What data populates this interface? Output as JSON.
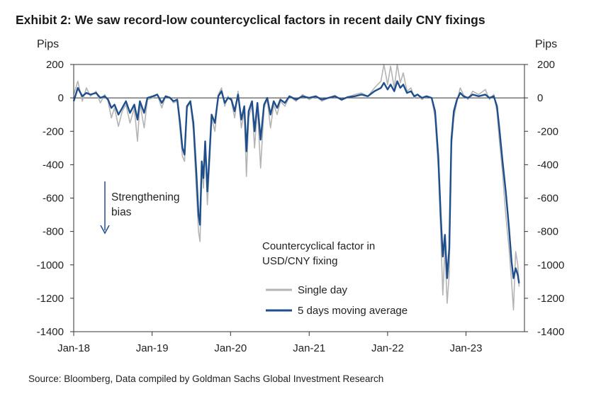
{
  "title": "Exhibit 2: We saw record-low countercyclical factors in recent daily CNY fixings",
  "source": "Source: Bloomberg, Data compiled by Goldman Sachs Global Investment Research",
  "chart_data": {
    "type": "line",
    "y_unit_left": "Pips",
    "y_unit_right": "Pips",
    "ylim": [
      -1400,
      200
    ],
    "yticks": [
      200,
      0,
      -200,
      -400,
      -600,
      -800,
      -1000,
      -1200,
      -1400
    ],
    "xlim": [
      "2018-01-01",
      "2023-09-30"
    ],
    "xticks": [
      {
        "label": "Jan-18",
        "date": "2018-01-01"
      },
      {
        "label": "Jan-19",
        "date": "2019-01-01"
      },
      {
        "label": "Jan-20",
        "date": "2020-01-01"
      },
      {
        "label": "Jan-21",
        "date": "2021-01-01"
      },
      {
        "label": "Jan-22",
        "date": "2022-01-01"
      },
      {
        "label": "Jan-23",
        "date": "2023-01-01"
      }
    ],
    "grid": false,
    "annotations": {
      "bias_line1": "Strengthening",
      "bias_line2": "bias",
      "legend_title_line1": "Countercyclical factor in",
      "legend_title_line2": "USD/CNY fixing"
    },
    "legend_position": "center-right",
    "series": [
      {
        "name": "Single day",
        "color": "#b4b4b4",
        "points": [
          [
            "2018-01-01",
            20
          ],
          [
            "2018-01-20",
            100
          ],
          [
            "2018-02-10",
            -20
          ],
          [
            "2018-03-01",
            60
          ],
          [
            "2018-03-20",
            10
          ],
          [
            "2018-04-15",
            40
          ],
          [
            "2018-05-05",
            -30
          ],
          [
            "2018-05-25",
            20
          ],
          [
            "2018-06-10",
            -20
          ],
          [
            "2018-06-25",
            -120
          ],
          [
            "2018-07-10",
            -60
          ],
          [
            "2018-07-28",
            -170
          ],
          [
            "2018-08-15",
            -80
          ],
          [
            "2018-09-01",
            -40
          ],
          [
            "2018-09-20",
            -150
          ],
          [
            "2018-10-10",
            -60
          ],
          [
            "2018-10-25",
            -260
          ],
          [
            "2018-11-05",
            -30
          ],
          [
            "2018-11-25",
            -180
          ],
          [
            "2018-12-10",
            -10
          ],
          [
            "2019-01-05",
            0
          ],
          [
            "2019-01-25",
            20
          ],
          [
            "2019-02-15",
            -60
          ],
          [
            "2019-03-05",
            10
          ],
          [
            "2019-03-25",
            5
          ],
          [
            "2019-04-10",
            -30
          ],
          [
            "2019-04-28",
            -20
          ],
          [
            "2019-05-10",
            -180
          ],
          [
            "2019-05-22",
            -350
          ],
          [
            "2019-06-01",
            -380
          ],
          [
            "2019-06-12",
            -60
          ],
          [
            "2019-06-28",
            -30
          ],
          [
            "2019-07-12",
            -200
          ],
          [
            "2019-07-26",
            -560
          ],
          [
            "2019-08-05",
            -800
          ],
          [
            "2019-08-12",
            -860
          ],
          [
            "2019-08-20",
            -430
          ],
          [
            "2019-08-28",
            -540
          ],
          [
            "2019-09-05",
            -300
          ],
          [
            "2019-09-15",
            -640
          ],
          [
            "2019-09-25",
            -400
          ],
          [
            "2019-10-05",
            -120
          ],
          [
            "2019-10-20",
            -200
          ],
          [
            "2019-11-05",
            20
          ],
          [
            "2019-11-20",
            60
          ],
          [
            "2019-12-05",
            -50
          ],
          [
            "2019-12-20",
            10
          ],
          [
            "2020-01-05",
            -20
          ],
          [
            "2020-01-20",
            -120
          ],
          [
            "2020-02-05",
            40
          ],
          [
            "2020-02-20",
            -180
          ],
          [
            "2020-03-05",
            -80
          ],
          [
            "2020-03-15",
            -470
          ],
          [
            "2020-03-25",
            -120
          ],
          [
            "2020-04-10",
            -40
          ],
          [
            "2020-04-22",
            -300
          ],
          [
            "2020-05-05",
            -50
          ],
          [
            "2020-05-20",
            -420
          ],
          [
            "2020-06-05",
            -60
          ],
          [
            "2020-06-20",
            -10
          ],
          [
            "2020-07-05",
            -180
          ],
          [
            "2020-07-20",
            -40
          ],
          [
            "2020-08-05",
            -100
          ],
          [
            "2020-08-20",
            -20
          ],
          [
            "2020-09-10",
            -50
          ],
          [
            "2020-10-01",
            10
          ],
          [
            "2020-11-01",
            -20
          ],
          [
            "2020-12-01",
            20
          ],
          [
            "2021-01-01",
            -10
          ],
          [
            "2021-02-01",
            10
          ],
          [
            "2021-03-01",
            -20
          ],
          [
            "2021-04-01",
            0
          ],
          [
            "2021-05-01",
            15
          ],
          [
            "2021-06-01",
            -15
          ],
          [
            "2021-07-01",
            5
          ],
          [
            "2021-08-01",
            20
          ],
          [
            "2021-09-01",
            30
          ],
          [
            "2021-10-01",
            10
          ],
          [
            "2021-11-01",
            60
          ],
          [
            "2021-12-01",
            100
          ],
          [
            "2021-12-15",
            200
          ],
          [
            "2022-01-01",
            80
          ],
          [
            "2022-01-15",
            190
          ],
          [
            "2022-02-01",
            60
          ],
          [
            "2022-02-15",
            200
          ],
          [
            "2022-03-01",
            90
          ],
          [
            "2022-03-15",
            150
          ],
          [
            "2022-04-01",
            40
          ],
          [
            "2022-04-20",
            60
          ],
          [
            "2022-05-05",
            0
          ],
          [
            "2022-05-20",
            20
          ],
          [
            "2022-06-10",
            -10
          ],
          [
            "2022-07-01",
            10
          ],
          [
            "2022-07-25",
            0
          ],
          [
            "2022-08-10",
            -120
          ],
          [
            "2022-08-25",
            -420
          ],
          [
            "2022-09-05",
            -800
          ],
          [
            "2022-09-15",
            -1180
          ],
          [
            "2022-09-25",
            -900
          ],
          [
            "2022-10-05",
            -1230
          ],
          [
            "2022-10-15",
            -1050
          ],
          [
            "2022-10-25",
            -300
          ],
          [
            "2022-11-05",
            -120
          ],
          [
            "2022-11-20",
            -20
          ],
          [
            "2022-12-05",
            60
          ],
          [
            "2022-12-20",
            20
          ],
          [
            "2023-01-10",
            -10
          ],
          [
            "2023-02-01",
            40
          ],
          [
            "2023-03-01",
            20
          ],
          [
            "2023-04-01",
            50
          ],
          [
            "2023-04-20",
            -10
          ],
          [
            "2023-05-10",
            20
          ],
          [
            "2023-05-25",
            -80
          ],
          [
            "2023-06-05",
            -250
          ],
          [
            "2023-06-20",
            -450
          ],
          [
            "2023-07-05",
            -700
          ],
          [
            "2023-07-20",
            -900
          ],
          [
            "2023-08-01",
            -1100
          ],
          [
            "2023-08-10",
            -1270
          ],
          [
            "2023-08-20",
            -920
          ],
          [
            "2023-08-30",
            -1000
          ],
          [
            "2023-09-05",
            -1130
          ]
        ]
      },
      {
        "name": "5 days moving average",
        "color": "#1f4e8c",
        "points": [
          [
            "2018-01-01",
            -20
          ],
          [
            "2018-01-20",
            60
          ],
          [
            "2018-02-10",
            10
          ],
          [
            "2018-03-01",
            30
          ],
          [
            "2018-03-20",
            20
          ],
          [
            "2018-04-15",
            30
          ],
          [
            "2018-05-05",
            0
          ],
          [
            "2018-05-25",
            10
          ],
          [
            "2018-06-10",
            -10
          ],
          [
            "2018-06-25",
            -60
          ],
          [
            "2018-07-10",
            -40
          ],
          [
            "2018-07-28",
            -100
          ],
          [
            "2018-08-15",
            -60
          ],
          [
            "2018-09-01",
            -20
          ],
          [
            "2018-09-20",
            -90
          ],
          [
            "2018-10-10",
            -40
          ],
          [
            "2018-10-25",
            -130
          ],
          [
            "2018-11-05",
            -20
          ],
          [
            "2018-11-25",
            -90
          ],
          [
            "2018-12-10",
            0
          ],
          [
            "2019-01-05",
            10
          ],
          [
            "2019-01-25",
            20
          ],
          [
            "2019-02-15",
            -30
          ],
          [
            "2019-03-05",
            10
          ],
          [
            "2019-03-25",
            0
          ],
          [
            "2019-04-10",
            -20
          ],
          [
            "2019-04-28",
            -10
          ],
          [
            "2019-05-10",
            -140
          ],
          [
            "2019-05-22",
            -300
          ],
          [
            "2019-06-01",
            -340
          ],
          [
            "2019-06-12",
            -50
          ],
          [
            "2019-06-28",
            -20
          ],
          [
            "2019-07-12",
            -150
          ],
          [
            "2019-07-26",
            -450
          ],
          [
            "2019-08-05",
            -700
          ],
          [
            "2019-08-12",
            -760
          ],
          [
            "2019-08-20",
            -380
          ],
          [
            "2019-08-28",
            -480
          ],
          [
            "2019-09-05",
            -260
          ],
          [
            "2019-09-15",
            -560
          ],
          [
            "2019-09-25",
            -340
          ],
          [
            "2019-10-05",
            -100
          ],
          [
            "2019-10-20",
            -150
          ],
          [
            "2019-11-05",
            10
          ],
          [
            "2019-11-20",
            40
          ],
          [
            "2019-12-05",
            -30
          ],
          [
            "2019-12-20",
            0
          ],
          [
            "2020-01-05",
            -10
          ],
          [
            "2020-01-20",
            -80
          ],
          [
            "2020-02-05",
            20
          ],
          [
            "2020-02-20",
            -130
          ],
          [
            "2020-03-05",
            -50
          ],
          [
            "2020-03-15",
            -320
          ],
          [
            "2020-03-25",
            -80
          ],
          [
            "2020-04-10",
            -20
          ],
          [
            "2020-04-22",
            -200
          ],
          [
            "2020-05-05",
            -30
          ],
          [
            "2020-05-20",
            -250
          ],
          [
            "2020-06-05",
            -40
          ],
          [
            "2020-06-20",
            0
          ],
          [
            "2020-07-05",
            -100
          ],
          [
            "2020-07-20",
            -20
          ],
          [
            "2020-08-05",
            -60
          ],
          [
            "2020-08-20",
            -10
          ],
          [
            "2020-09-10",
            -30
          ],
          [
            "2020-10-01",
            10
          ],
          [
            "2020-11-01",
            -10
          ],
          [
            "2020-12-01",
            10
          ],
          [
            "2021-01-01",
            0
          ],
          [
            "2021-02-01",
            10
          ],
          [
            "2021-03-01",
            -10
          ],
          [
            "2021-04-01",
            0
          ],
          [
            "2021-05-01",
            10
          ],
          [
            "2021-06-01",
            -10
          ],
          [
            "2021-07-01",
            5
          ],
          [
            "2021-08-01",
            10
          ],
          [
            "2021-09-01",
            20
          ],
          [
            "2021-10-01",
            10
          ],
          [
            "2021-11-01",
            40
          ],
          [
            "2021-12-01",
            60
          ],
          [
            "2021-12-15",
            90
          ],
          [
            "2022-01-01",
            50
          ],
          [
            "2022-01-15",
            80
          ],
          [
            "2022-02-01",
            40
          ],
          [
            "2022-02-15",
            100
          ],
          [
            "2022-03-01",
            60
          ],
          [
            "2022-03-15",
            80
          ],
          [
            "2022-04-01",
            30
          ],
          [
            "2022-04-20",
            40
          ],
          [
            "2022-05-05",
            10
          ],
          [
            "2022-05-20",
            20
          ],
          [
            "2022-06-10",
            0
          ],
          [
            "2022-07-01",
            10
          ],
          [
            "2022-07-25",
            0
          ],
          [
            "2022-08-10",
            -80
          ],
          [
            "2022-08-25",
            -350
          ],
          [
            "2022-09-05",
            -700
          ],
          [
            "2022-09-15",
            -950
          ],
          [
            "2022-09-25",
            -820
          ],
          [
            "2022-10-05",
            -1080
          ],
          [
            "2022-10-15",
            -900
          ],
          [
            "2022-10-25",
            -250
          ],
          [
            "2022-11-05",
            -80
          ],
          [
            "2022-11-20",
            -10
          ],
          [
            "2022-12-05",
            30
          ],
          [
            "2022-12-20",
            10
          ],
          [
            "2023-01-10",
            0
          ],
          [
            "2023-02-01",
            20
          ],
          [
            "2023-03-01",
            10
          ],
          [
            "2023-04-01",
            20
          ],
          [
            "2023-04-20",
            0
          ],
          [
            "2023-05-10",
            10
          ],
          [
            "2023-05-25",
            -50
          ],
          [
            "2023-06-05",
            -180
          ],
          [
            "2023-06-20",
            -380
          ],
          [
            "2023-07-05",
            -560
          ],
          [
            "2023-07-20",
            -780
          ],
          [
            "2023-08-01",
            -980
          ],
          [
            "2023-08-10",
            -1080
          ],
          [
            "2023-08-20",
            -1020
          ],
          [
            "2023-08-30",
            -1060
          ],
          [
            "2023-09-05",
            -1110
          ]
        ]
      }
    ]
  }
}
